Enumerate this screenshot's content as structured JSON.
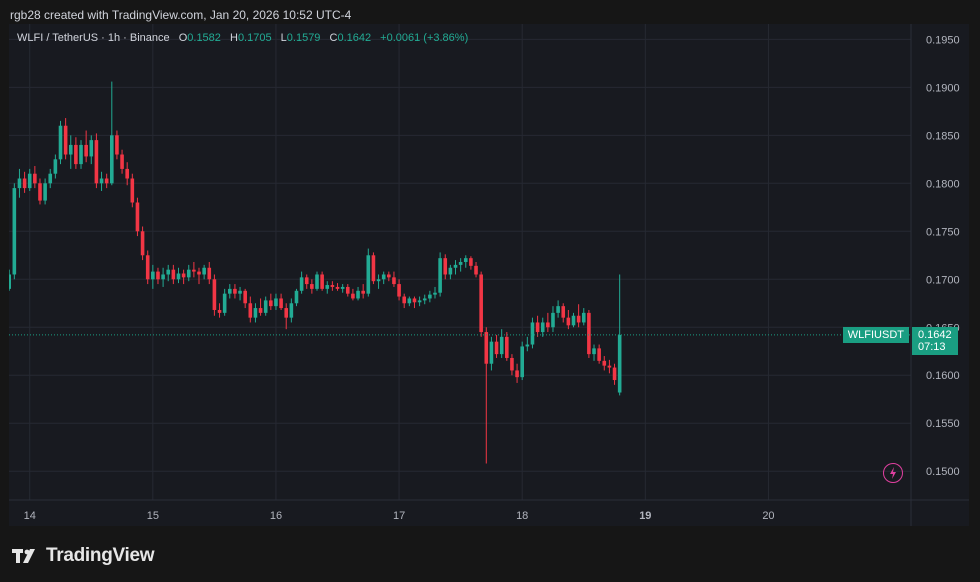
{
  "header": {
    "credit": "rgb28 created with TradingView.com, Jan 20, 2026 10:52 UTC-4"
  },
  "legend": {
    "symbol": "WLFI / TetherUS · 1h · Binance",
    "o_label": "O",
    "o_value": "0.1582",
    "h_label": "H",
    "h_value": "0.1705",
    "l_label": "L",
    "l_value": "0.1579",
    "c_label": "C",
    "c_value": "0.1642",
    "change": "+0.0061 (+3.86%)"
  },
  "current": {
    "symbol": "WLFIUSDT",
    "price": "0.1642",
    "countdown": "07:13",
    "value": 0.1642
  },
  "footer": {
    "brand": "TradingView"
  },
  "icons": {
    "lightning": "lightning-icon",
    "logo": "tradingview-logo-icon"
  },
  "colors": {
    "up": "#22ab94",
    "down": "#f23645",
    "background": "#181a20",
    "grid": "#262932"
  },
  "chart_data": {
    "type": "candlestick",
    "timeframe": "1h",
    "y_range": [
      0.147,
      0.1966
    ],
    "y_ticks": [
      "0.1950",
      "0.1900",
      "0.1850",
      "0.1800",
      "0.1750",
      "0.1700",
      "0.1650",
      "0.1600",
      "0.1550",
      "0.1500"
    ],
    "x_ticks": [
      {
        "label": "14",
        "pos": 4
      },
      {
        "label": "15",
        "pos": 28
      },
      {
        "label": "16",
        "pos": 52
      },
      {
        "label": "17",
        "pos": 76
      },
      {
        "label": "18",
        "pos": 100
      },
      {
        "label": "19",
        "pos": 124,
        "bold": true
      },
      {
        "label": "20",
        "pos": 148
      }
    ],
    "candles": [
      [
        0.169,
        0.171,
        0.1688,
        0.1705
      ],
      [
        0.1705,
        0.18,
        0.17,
        0.1795
      ],
      [
        0.1795,
        0.1815,
        0.1785,
        0.1805
      ],
      [
        0.1805,
        0.1812,
        0.179,
        0.1795
      ],
      [
        0.1795,
        0.1815,
        0.1792,
        0.181
      ],
      [
        0.181,
        0.1818,
        0.1795,
        0.18
      ],
      [
        0.18,
        0.1805,
        0.1778,
        0.1782
      ],
      [
        0.1782,
        0.1805,
        0.1778,
        0.18
      ],
      [
        0.18,
        0.1815,
        0.1795,
        0.181
      ],
      [
        0.181,
        0.183,
        0.1805,
        0.1825
      ],
      [
        0.1825,
        0.1865,
        0.182,
        0.186
      ],
      [
        0.186,
        0.1868,
        0.1825,
        0.183
      ],
      [
        0.183,
        0.185,
        0.1815,
        0.184
      ],
      [
        0.184,
        0.1848,
        0.1815,
        0.182
      ],
      [
        0.182,
        0.1845,
        0.1815,
        0.184
      ],
      [
        0.184,
        0.1855,
        0.1822,
        0.1828
      ],
      [
        0.1828,
        0.185,
        0.182,
        0.1845
      ],
      [
        0.1845,
        0.1852,
        0.1795,
        0.18
      ],
      [
        0.18,
        0.1812,
        0.1792,
        0.1805
      ],
      [
        0.1805,
        0.181,
        0.1795,
        0.18
      ],
      [
        0.18,
        0.1906,
        0.1798,
        0.185
      ],
      [
        0.185,
        0.1855,
        0.1825,
        0.183
      ],
      [
        0.183,
        0.1835,
        0.181,
        0.1815
      ],
      [
        0.1815,
        0.1822,
        0.1798,
        0.1805
      ],
      [
        0.1805,
        0.181,
        0.1775,
        0.178
      ],
      [
        0.178,
        0.1785,
        0.1745,
        0.175
      ],
      [
        0.175,
        0.1755,
        0.172,
        0.1725
      ],
      [
        0.1725,
        0.173,
        0.1695,
        0.17
      ],
      [
        0.17,
        0.1715,
        0.169,
        0.1708
      ],
      [
        0.1708,
        0.1712,
        0.1695,
        0.17
      ],
      [
        0.17,
        0.1712,
        0.1692,
        0.1705
      ],
      [
        0.1705,
        0.1715,
        0.1698,
        0.171
      ],
      [
        0.171,
        0.1715,
        0.1695,
        0.17
      ],
      [
        0.17,
        0.1712,
        0.1696,
        0.1706
      ],
      [
        0.1706,
        0.171,
        0.1695,
        0.1702
      ],
      [
        0.1702,
        0.1715,
        0.1698,
        0.171
      ],
      [
        0.171,
        0.1718,
        0.1702,
        0.1708
      ],
      [
        0.1708,
        0.1712,
        0.1695,
        0.1705
      ],
      [
        0.1705,
        0.1715,
        0.17,
        0.1712
      ],
      [
        0.1712,
        0.1718,
        0.1695,
        0.17
      ],
      [
        0.17,
        0.1705,
        0.1662,
        0.1668
      ],
      [
        0.1668,
        0.1675,
        0.166,
        0.1665
      ],
      [
        0.1665,
        0.169,
        0.1662,
        0.1685
      ],
      [
        0.1685,
        0.1695,
        0.168,
        0.169
      ],
      [
        0.169,
        0.1695,
        0.168,
        0.1685
      ],
      [
        0.1685,
        0.1692,
        0.1678,
        0.1688
      ],
      [
        0.1688,
        0.169,
        0.167,
        0.1675
      ],
      [
        0.1675,
        0.1682,
        0.1655,
        0.166
      ],
      [
        0.166,
        0.1675,
        0.1655,
        0.167
      ],
      [
        0.167,
        0.168,
        0.1662,
        0.1665
      ],
      [
        0.1665,
        0.1682,
        0.1662,
        0.1678
      ],
      [
        0.1678,
        0.1685,
        0.1668,
        0.1672
      ],
      [
        0.1672,
        0.1685,
        0.1668,
        0.168
      ],
      [
        0.168,
        0.1685,
        0.1668,
        0.167
      ],
      [
        0.167,
        0.1675,
        0.1648,
        0.166
      ],
      [
        0.166,
        0.168,
        0.1655,
        0.1675
      ],
      [
        0.1675,
        0.169,
        0.1672,
        0.1688
      ],
      [
        0.1688,
        0.1708,
        0.1685,
        0.1702
      ],
      [
        0.1702,
        0.1705,
        0.169,
        0.1695
      ],
      [
        0.1695,
        0.17,
        0.1685,
        0.169
      ],
      [
        0.169,
        0.1708,
        0.1688,
        0.1705
      ],
      [
        0.1705,
        0.1708,
        0.1688,
        0.169
      ],
      [
        0.169,
        0.1698,
        0.1685,
        0.1694
      ],
      [
        0.1694,
        0.1698,
        0.1688,
        0.1692
      ],
      [
        0.1692,
        0.1696,
        0.1688,
        0.169
      ],
      [
        0.169,
        0.1695,
        0.1686,
        0.1692
      ],
      [
        0.1692,
        0.1695,
        0.1682,
        0.1685
      ],
      [
        0.1685,
        0.169,
        0.1678,
        0.168
      ],
      [
        0.168,
        0.1692,
        0.1678,
        0.1688
      ],
      [
        0.1688,
        0.1695,
        0.168,
        0.1685
      ],
      [
        0.1685,
        0.1732,
        0.1682,
        0.1725
      ],
      [
        0.1725,
        0.1728,
        0.1695,
        0.1698
      ],
      [
        0.1698,
        0.1705,
        0.169,
        0.17
      ],
      [
        0.17,
        0.1708,
        0.1695,
        0.1705
      ],
      [
        0.1705,
        0.1708,
        0.1698,
        0.1702
      ],
      [
        0.1702,
        0.1708,
        0.1692,
        0.1695
      ],
      [
        0.1695,
        0.17,
        0.1678,
        0.1682
      ],
      [
        0.1682,
        0.1685,
        0.167,
        0.1675
      ],
      [
        0.1675,
        0.1682,
        0.1672,
        0.168
      ],
      [
        0.168,
        0.1682,
        0.167,
        0.1676
      ],
      [
        0.1676,
        0.1682,
        0.1672,
        0.1678
      ],
      [
        0.1678,
        0.1684,
        0.1674,
        0.168
      ],
      [
        0.168,
        0.1688,
        0.1676,
        0.1684
      ],
      [
        0.1684,
        0.1692,
        0.168,
        0.1686
      ],
      [
        0.1686,
        0.1728,
        0.1682,
        0.1722
      ],
      [
        0.1722,
        0.1726,
        0.17,
        0.1705
      ],
      [
        0.1705,
        0.1715,
        0.17,
        0.1712
      ],
      [
        0.1712,
        0.172,
        0.1705,
        0.1715
      ],
      [
        0.1715,
        0.1722,
        0.1708,
        0.1718
      ],
      [
        0.1718,
        0.1725,
        0.1712,
        0.1722
      ],
      [
        0.1722,
        0.1724,
        0.171,
        0.1714
      ],
      [
        0.1714,
        0.1718,
        0.1702,
        0.1705
      ],
      [
        0.1705,
        0.1708,
        0.164,
        0.1645
      ],
      [
        0.1645,
        0.165,
        0.1508,
        0.1612
      ],
      [
        0.1612,
        0.164,
        0.1605,
        0.1635
      ],
      [
        0.1635,
        0.1642,
        0.1618,
        0.1622
      ],
      [
        0.1622,
        0.1648,
        0.1618,
        0.164
      ],
      [
        0.164,
        0.1645,
        0.1615,
        0.1618
      ],
      [
        0.1618,
        0.1622,
        0.16,
        0.1605
      ],
      [
        0.1605,
        0.1612,
        0.1592,
        0.1598
      ],
      [
        0.1598,
        0.1635,
        0.1595,
        0.163
      ],
      [
        0.163,
        0.164,
        0.1625,
        0.1632
      ],
      [
        0.1632,
        0.166,
        0.1628,
        0.1655
      ],
      [
        0.1655,
        0.1662,
        0.164,
        0.1645
      ],
      [
        0.1645,
        0.166,
        0.164,
        0.1655
      ],
      [
        0.1655,
        0.1665,
        0.1645,
        0.165
      ],
      [
        0.165,
        0.1672,
        0.1645,
        0.1665
      ],
      [
        0.1665,
        0.1678,
        0.166,
        0.1672
      ],
      [
        0.1672,
        0.1675,
        0.1655,
        0.166
      ],
      [
        0.166,
        0.1668,
        0.1648,
        0.1652
      ],
      [
        0.1652,
        0.1665,
        0.165,
        0.1662
      ],
      [
        0.1662,
        0.1674,
        0.165,
        0.1655
      ],
      [
        0.1655,
        0.167,
        0.1652,
        0.1665
      ],
      [
        0.1665,
        0.1668,
        0.1618,
        0.1622
      ],
      [
        0.1622,
        0.1632,
        0.1615,
        0.1628
      ],
      [
        0.1628,
        0.1632,
        0.1612,
        0.1615
      ],
      [
        0.1615,
        0.162,
        0.1605,
        0.161
      ],
      [
        0.161,
        0.1616,
        0.1602,
        0.1608
      ],
      [
        0.1608,
        0.1612,
        0.159,
        0.1595
      ],
      [
        0.1582,
        0.1705,
        0.1579,
        0.1642
      ]
    ]
  }
}
